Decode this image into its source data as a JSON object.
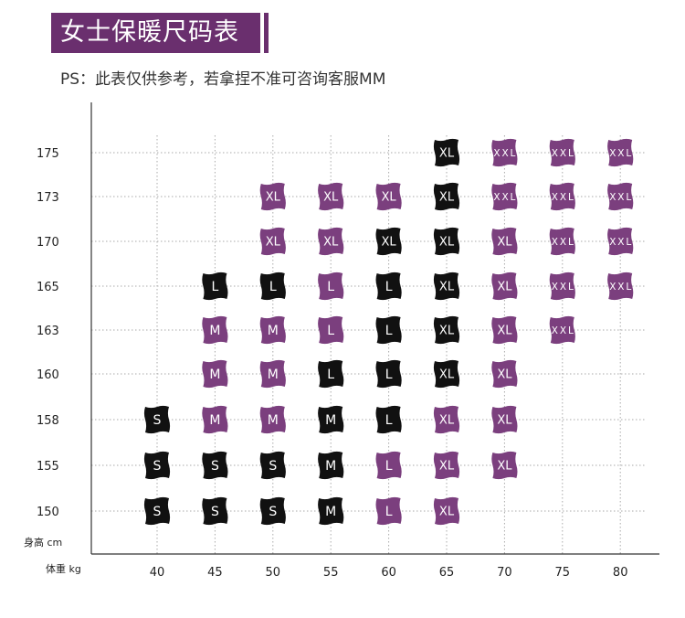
{
  "title": "女士保暖尺码表",
  "note": "PS：此表仅供参考，若拿捏不准可咨询客服MM",
  "colors": {
    "accent": "#6a2f6e",
    "dark": "#111111",
    "purple": "#7b3f7e",
    "grid": "#aaaaaa"
  },
  "chart_data": {
    "type": "table",
    "xlabel": "体重 kg",
    "ylabel": "身高 cm",
    "x": [
      40,
      45,
      50,
      55,
      60,
      65,
      70,
      75,
      80
    ],
    "y": [
      175,
      173,
      170,
      165,
      163,
      160,
      158,
      155,
      150
    ],
    "cells": [
      {
        "x": 65,
        "y": 175,
        "size": "XL",
        "color": "black"
      },
      {
        "x": 70,
        "y": 175,
        "size": "XXL",
        "color": "purple"
      },
      {
        "x": 75,
        "y": 175,
        "size": "XXL",
        "color": "purple"
      },
      {
        "x": 80,
        "y": 175,
        "size": "XXL",
        "color": "purple"
      },
      {
        "x": 50,
        "y": 173,
        "size": "XL",
        "color": "purple"
      },
      {
        "x": 55,
        "y": 173,
        "size": "XL",
        "color": "purple"
      },
      {
        "x": 60,
        "y": 173,
        "size": "XL",
        "color": "purple"
      },
      {
        "x": 65,
        "y": 173,
        "size": "XL",
        "color": "black"
      },
      {
        "x": 70,
        "y": 173,
        "size": "XXL",
        "color": "purple"
      },
      {
        "x": 75,
        "y": 173,
        "size": "XXL",
        "color": "purple"
      },
      {
        "x": 80,
        "y": 173,
        "size": "XXL",
        "color": "purple"
      },
      {
        "x": 50,
        "y": 170,
        "size": "XL",
        "color": "purple"
      },
      {
        "x": 55,
        "y": 170,
        "size": "XL",
        "color": "purple"
      },
      {
        "x": 60,
        "y": 170,
        "size": "XL",
        "color": "black"
      },
      {
        "x": 65,
        "y": 170,
        "size": "XL",
        "color": "black"
      },
      {
        "x": 70,
        "y": 170,
        "size": "XL",
        "color": "purple"
      },
      {
        "x": 75,
        "y": 170,
        "size": "XXL",
        "color": "purple"
      },
      {
        "x": 80,
        "y": 170,
        "size": "XXL",
        "color": "purple"
      },
      {
        "x": 45,
        "y": 165,
        "size": "L",
        "color": "black"
      },
      {
        "x": 50,
        "y": 165,
        "size": "L",
        "color": "black"
      },
      {
        "x": 55,
        "y": 165,
        "size": "L",
        "color": "purple"
      },
      {
        "x": 60,
        "y": 165,
        "size": "L",
        "color": "black"
      },
      {
        "x": 65,
        "y": 165,
        "size": "XL",
        "color": "black"
      },
      {
        "x": 70,
        "y": 165,
        "size": "XL",
        "color": "purple"
      },
      {
        "x": 75,
        "y": 165,
        "size": "XXL",
        "color": "purple"
      },
      {
        "x": 80,
        "y": 165,
        "size": "XXL",
        "color": "purple"
      },
      {
        "x": 45,
        "y": 163,
        "size": "M",
        "color": "purple"
      },
      {
        "x": 50,
        "y": 163,
        "size": "M",
        "color": "purple"
      },
      {
        "x": 55,
        "y": 163,
        "size": "L",
        "color": "purple"
      },
      {
        "x": 60,
        "y": 163,
        "size": "L",
        "color": "black"
      },
      {
        "x": 65,
        "y": 163,
        "size": "XL",
        "color": "black"
      },
      {
        "x": 70,
        "y": 163,
        "size": "XL",
        "color": "purple"
      },
      {
        "x": 75,
        "y": 163,
        "size": "XXL",
        "color": "purple"
      },
      {
        "x": 45,
        "y": 160,
        "size": "M",
        "color": "purple"
      },
      {
        "x": 50,
        "y": 160,
        "size": "M",
        "color": "purple"
      },
      {
        "x": 55,
        "y": 160,
        "size": "L",
        "color": "black"
      },
      {
        "x": 60,
        "y": 160,
        "size": "L",
        "color": "black"
      },
      {
        "x": 65,
        "y": 160,
        "size": "XL",
        "color": "black"
      },
      {
        "x": 70,
        "y": 160,
        "size": "XL",
        "color": "purple"
      },
      {
        "x": 40,
        "y": 158,
        "size": "S",
        "color": "black"
      },
      {
        "x": 45,
        "y": 158,
        "size": "M",
        "color": "purple"
      },
      {
        "x": 50,
        "y": 158,
        "size": "M",
        "color": "purple"
      },
      {
        "x": 55,
        "y": 158,
        "size": "M",
        "color": "black"
      },
      {
        "x": 60,
        "y": 158,
        "size": "L",
        "color": "black"
      },
      {
        "x": 65,
        "y": 158,
        "size": "XL",
        "color": "purple"
      },
      {
        "x": 70,
        "y": 158,
        "size": "XL",
        "color": "purple"
      },
      {
        "x": 40,
        "y": 155,
        "size": "S",
        "color": "black"
      },
      {
        "x": 45,
        "y": 155,
        "size": "S",
        "color": "black"
      },
      {
        "x": 50,
        "y": 155,
        "size": "S",
        "color": "black"
      },
      {
        "x": 55,
        "y": 155,
        "size": "M",
        "color": "black"
      },
      {
        "x": 60,
        "y": 155,
        "size": "L",
        "color": "purple"
      },
      {
        "x": 65,
        "y": 155,
        "size": "XL",
        "color": "purple"
      },
      {
        "x": 70,
        "y": 155,
        "size": "XL",
        "color": "purple"
      },
      {
        "x": 40,
        "y": 150,
        "size": "S",
        "color": "black"
      },
      {
        "x": 45,
        "y": 150,
        "size": "S",
        "color": "black"
      },
      {
        "x": 50,
        "y": 150,
        "size": "S",
        "color": "black"
      },
      {
        "x": 55,
        "y": 150,
        "size": "M",
        "color": "black"
      },
      {
        "x": 60,
        "y": 150,
        "size": "L",
        "color": "purple"
      },
      {
        "x": 65,
        "y": 150,
        "size": "XL",
        "color": "purple"
      }
    ]
  }
}
